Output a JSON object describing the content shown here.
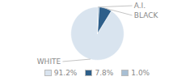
{
  "chart_data": {
    "type": "pie",
    "categories": [
      "WHITE",
      "BLACK",
      "A.I."
    ],
    "values": [
      91.2,
      7.8,
      1.0
    ],
    "value_labels": [
      "91.2%",
      "7.8%",
      "1.0%"
    ],
    "colors": [
      "#d9e4ef",
      "#2e5f8a",
      "#a8bfd4"
    ],
    "legend": "bottom"
  }
}
